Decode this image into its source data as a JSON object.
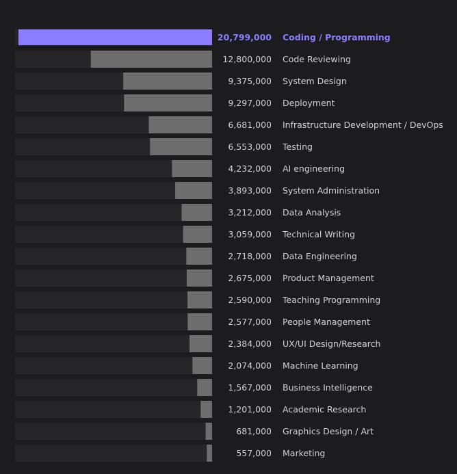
{
  "chart_data": {
    "type": "bar",
    "orientation": "horizontal",
    "title": "",
    "xlabel": "",
    "ylabel": "",
    "xlim": [
      0,
      20799000
    ],
    "highlight_index": 0,
    "colors": {
      "background": "#1c1c1e",
      "track": "#262628",
      "bar": "#6e6e6e",
      "highlight_bar": "#8b7dff",
      "text": "#d2d2d2",
      "highlight_text": "#8b7dff"
    },
    "categories": [
      "Coding / Programming",
      "Code Reviewing",
      "System Design",
      "Deployment",
      "Infrastructure Development / DevOps",
      "Testing",
      "AI engineering",
      "System Administration",
      "Data Analysis",
      "Technical Writing",
      "Data Engineering",
      "Product Management",
      "Teaching Programming",
      "People Management",
      "UX/UI Design/Research",
      "Machine Learning",
      "Business Intelligence",
      "Academic Research",
      "Graphics Design / Art",
      "Marketing"
    ],
    "values": [
      20799000,
      12800000,
      9375000,
      9297000,
      6681000,
      6553000,
      4232000,
      3893000,
      3212000,
      3059000,
      2718000,
      2675000,
      2590000,
      2577000,
      2384000,
      2074000,
      1567000,
      1201000,
      681000,
      557000
    ],
    "value_labels": [
      "20,799,000",
      "12,800,000",
      "9,375,000",
      "9,297,000",
      "6,681,000",
      "6,553,000",
      "4,232,000",
      "3,893,000",
      "3,212,000",
      "3,059,000",
      "2,718,000",
      "2,675,000",
      "2,590,000",
      "2,577,000",
      "2,384,000",
      "2,074,000",
      "1,567,000",
      "1,201,000",
      "681,000",
      "557,000"
    ]
  }
}
